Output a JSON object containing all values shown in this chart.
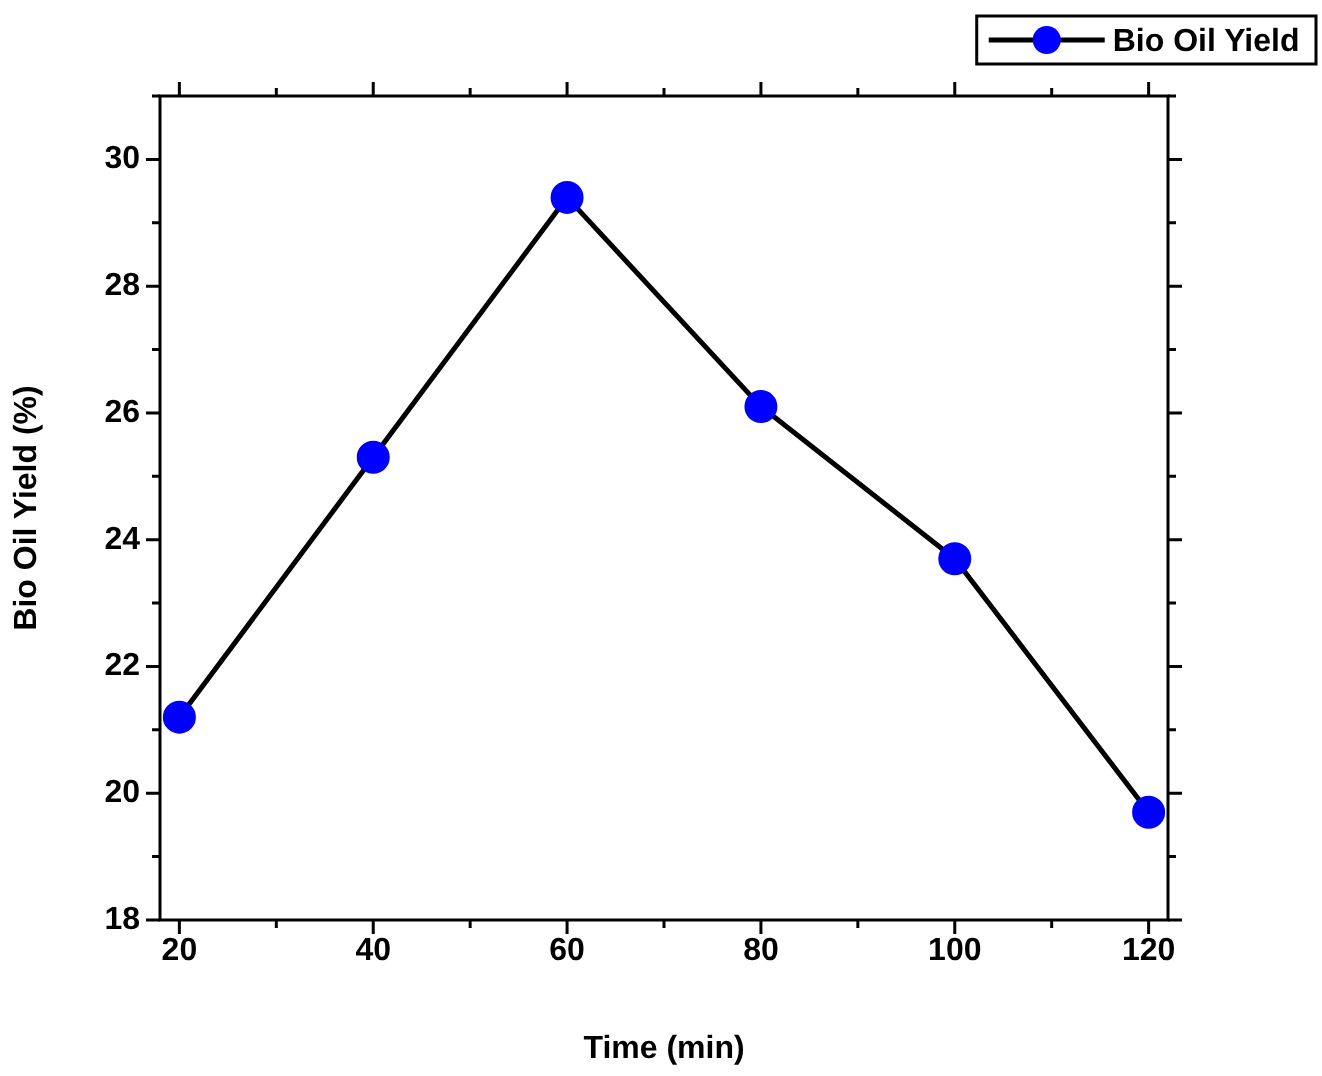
{
  "chart_data": {
    "type": "line",
    "xlabel": "Time (min)",
    "ylabel": "Bio Oil Yield (%)",
    "x": [
      20,
      40,
      60,
      80,
      100,
      120
    ],
    "series": [
      {
        "name": "Bio Oil Yield",
        "color": "#0000ff",
        "values": [
          21.2,
          25.3,
          29.4,
          26.1,
          23.7,
          19.7
        ]
      }
    ],
    "xlim": [
      18,
      122
    ],
    "xticks": [
      20,
      40,
      60,
      80,
      100,
      120
    ],
    "ylim": [
      18,
      31
    ],
    "yticks": [
      18,
      20,
      22,
      24,
      26,
      28,
      30
    ],
    "grid": false,
    "legend": "top right",
    "marker": "circle",
    "line_style": "solid"
  }
}
